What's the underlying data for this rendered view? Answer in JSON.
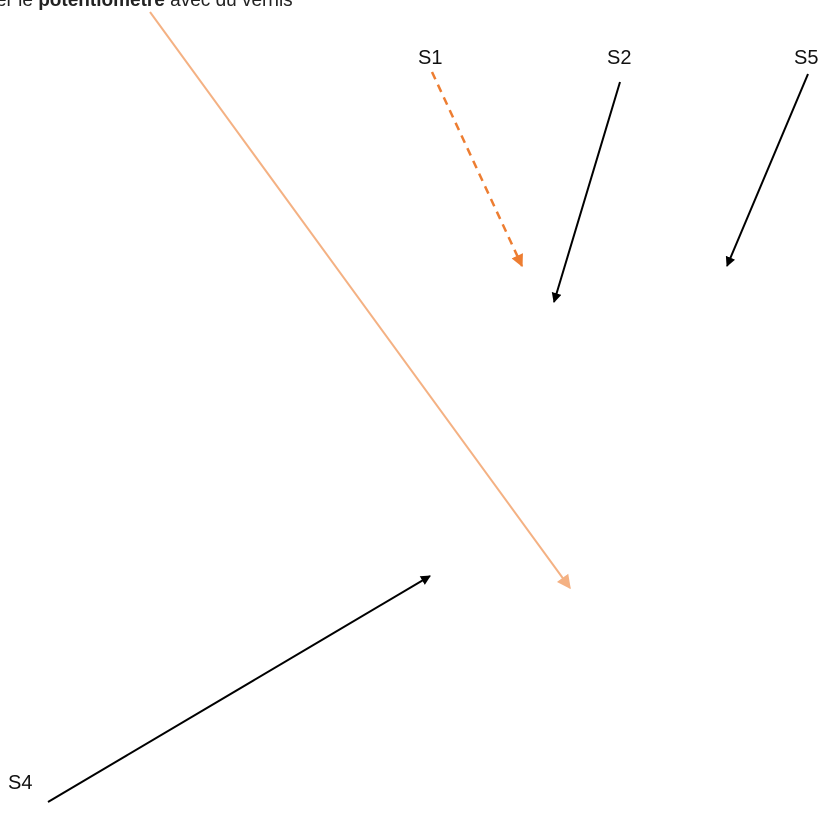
{
  "caption": {
    "prefix": "liser le ",
    "bold": "potentiomètre",
    "suffix": " avec du vernis"
  },
  "labels": {
    "s1": "S1",
    "s2": "S2",
    "s5": "S5",
    "s4": "S4"
  },
  "colors": {
    "black_arrow": "#000000",
    "dashed_orange_arrow": "#ED7D31",
    "light_orange_arrow": "#F4B183"
  }
}
